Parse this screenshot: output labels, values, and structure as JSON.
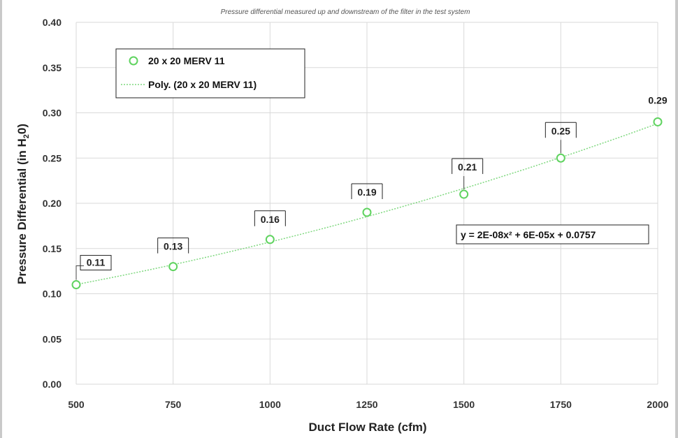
{
  "chart_data": {
    "type": "scatter",
    "title": "Pressure differential measured up and downstream of the filter in the test system",
    "xlabel": "Duct Flow Rate (cfm)",
    "ylabel_prefix": "Pressure Differential (in H",
    "ylabel_sub": "2",
    "ylabel_suffix": "0)",
    "xlim": [
      500,
      2000
    ],
    "ylim": [
      0,
      0.4
    ],
    "x_ticks": [
      "500",
      "750",
      "1000",
      "1250",
      "1500",
      "1750",
      "2000"
    ],
    "y_ticks": [
      "0.00",
      "0.05",
      "0.10",
      "0.15",
      "0.20",
      "0.25",
      "0.30",
      "0.35",
      "0.40"
    ],
    "grid": true,
    "legend_position": "top-left",
    "series": [
      {
        "name": "20 x 20 MERV 11",
        "x": [
          500,
          750,
          1000,
          1250,
          1500,
          1750,
          2000
        ],
        "y": [
          0.11,
          0.13,
          0.16,
          0.19,
          0.21,
          0.25,
          0.29
        ],
        "labels": [
          "0.11",
          "0.13",
          "0.16",
          "0.19",
          "0.21",
          "0.25",
          "0.29"
        ],
        "color": "#5fd35f"
      }
    ],
    "trendline": {
      "name": "Poly. (20 x 20 MERV 11)",
      "type": "polynomial",
      "order": 2,
      "equation_text": "y = 2E-08x² + 6E-05x + 0.0757",
      "color": "#7ed87e"
    }
  }
}
